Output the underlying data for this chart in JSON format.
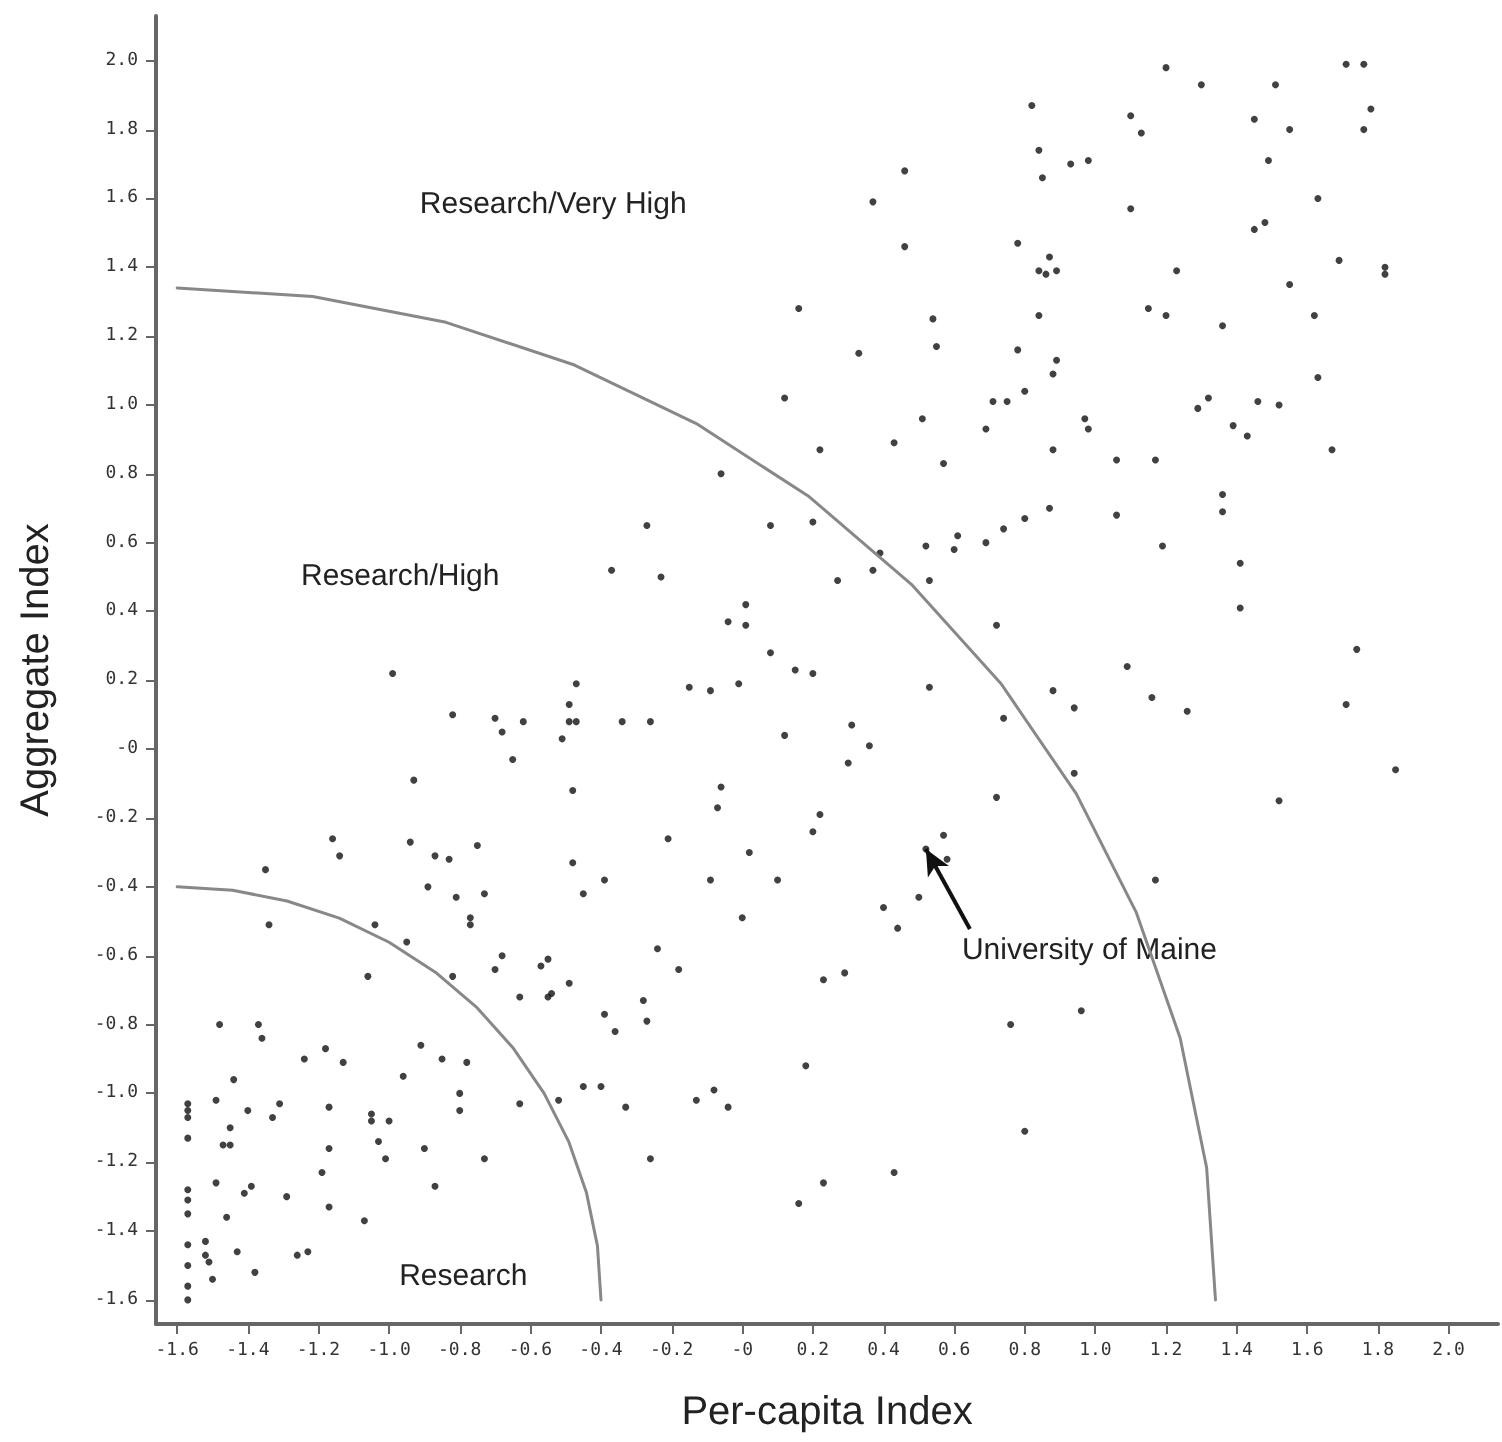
{
  "chart_data": {
    "type": "scatter",
    "xlabel": "Per-capita Index",
    "ylabel": "Aggregate Index",
    "xlim": [
      -1.66,
      2.14
    ],
    "ylim": [
      -1.67,
      2.13
    ],
    "xticks": [
      {
        "value": -1.6,
        "label": "-1.6"
      },
      {
        "value": -1.4,
        "label": "-1.4"
      },
      {
        "value": -1.2,
        "label": "-1.2"
      },
      {
        "value": -1.0,
        "label": "-1.0"
      },
      {
        "value": -0.8,
        "label": "-0.8"
      },
      {
        "value": -0.6,
        "label": "-0.6"
      },
      {
        "value": -0.4,
        "label": "-0.4"
      },
      {
        "value": -0.2,
        "label": "-0.2"
      },
      {
        "value": 0,
        "label": "-0"
      },
      {
        "value": 0.2,
        "label": "0.2"
      },
      {
        "value": 0.4,
        "label": "0.4"
      },
      {
        "value": 0.6,
        "label": "0.6"
      },
      {
        "value": 0.8,
        "label": "0.8"
      },
      {
        "value": 1.0,
        "label": "1.0"
      },
      {
        "value": 1.2,
        "label": "1.2"
      },
      {
        "value": 1.4,
        "label": "1.4"
      },
      {
        "value": 1.6,
        "label": "1.6"
      },
      {
        "value": 1.8,
        "label": "1.8"
      },
      {
        "value": 2.0,
        "label": "2.0"
      }
    ],
    "yticks": [
      {
        "value": -1.6,
        "label": "-1.6"
      },
      {
        "value": -1.4,
        "label": "-1.4"
      },
      {
        "value": -1.2,
        "label": "-1.2"
      },
      {
        "value": -1.0,
        "label": "-1.0"
      },
      {
        "value": -0.8,
        "label": "-0.8"
      },
      {
        "value": -0.6,
        "label": "-0.6"
      },
      {
        "value": -0.4,
        "label": "-0.4"
      },
      {
        "value": -0.2,
        "label": "-0.2"
      },
      {
        "value": 0,
        "label": "-0"
      },
      {
        "value": 0.2,
        "label": "0.2"
      },
      {
        "value": 0.4,
        "label": "0.4"
      },
      {
        "value": 0.6,
        "label": "0.6"
      },
      {
        "value": 0.8,
        "label": "0.8"
      },
      {
        "value": 1.0,
        "label": "1.0"
      },
      {
        "value": 1.2,
        "label": "1.2"
      },
      {
        "value": 1.4,
        "label": "1.4"
      },
      {
        "value": 1.6,
        "label": "1.6"
      },
      {
        "value": 1.8,
        "label": "1.8"
      },
      {
        "value": 2.0,
        "label": "2.0"
      }
    ],
    "marker": "circle",
    "annotations": [
      "Research/Very High",
      "Research/High",
      "Research",
      {
        "text": "University of Maine",
        "x": 0.52,
        "y": -0.29
      }
    ],
    "series": [
      {
        "type": "scatter",
        "color": "#111111",
        "x": [
          -0.06,
          0.08,
          -0.27,
          -0.37,
          -0.23,
          0.01,
          -0.04,
          0.01,
          0.08,
          -0.99,
          1.2,
          1.3,
          1.51,
          1.71,
          1.76,
          1.78,
          1.76,
          1.45,
          1.55,
          1.49,
          1.63,
          1.45,
          1.48,
          1.69,
          1.82,
          1.82,
          1.55,
          1.62,
          1.63,
          1.67,
          1.74,
          1.41,
          1.41,
          1.36,
          1.36,
          1.19,
          1.06,
          1.09,
          0.82,
          0.84,
          0.85,
          0.93,
          0.98,
          1.1,
          1.13,
          1.1,
          0.46,
          0.37,
          0.46,
          0.78,
          0.87,
          0.84,
          0.86,
          0.89,
          1.23,
          1.15,
          1.2,
          1.36,
          0.84,
          0.16,
          0.54,
          0.55,
          0.33,
          0.78,
          0.89,
          0.88,
          0.8,
          0.71,
          0.75,
          0.69,
          0.51,
          0.12,
          0.22,
          0.43,
          0.57,
          0.97,
          0.98,
          0.88,
          1.06,
          1.17,
          1.29,
          1.32,
          1.46,
          1.52,
          1.39,
          1.43,
          0.87,
          0.8,
          0.74,
          0.69,
          0.61,
          0.6,
          0.52,
          0.53,
          0.39,
          0.37,
          0.27,
          0.2,
          0.72,
          0.15,
          0.2,
          0.53,
          0.88,
          0.94,
          1.16,
          1.26,
          1.71,
          1.85,
          1.52,
          1.17,
          0.74,
          0.94,
          0.72,
          0.12,
          0.31,
          0.36,
          0.3,
          0.22,
          0.2,
          0.1,
          0.52,
          0.57,
          0.58,
          0.5,
          0.4,
          0.44,
          0.23,
          0.29,
          0.96,
          0.76,
          0.18,
          0.8,
          0.43,
          0.23,
          0.16,
          -0.47,
          -0.15,
          -0.09,
          -0.01,
          -0.82,
          -0.7,
          -0.68,
          -0.62,
          -0.49,
          -0.49,
          -0.47,
          -0.51,
          -0.34,
          -0.26,
          -0.65,
          -0.93,
          -0.48,
          -0.06,
          -0.07,
          -0.21,
          0.02,
          -1.16,
          -1.14,
          -0.94,
          -0.87,
          -0.83,
          -0.75,
          -0.48,
          -0.09,
          -0.39,
          -0.45,
          0.0,
          -1.35,
          -1.34,
          -0.89,
          -0.81,
          -0.77,
          -0.77,
          -0.73,
          -1.04,
          -0.95,
          -1.06,
          -0.82,
          -0.7,
          -0.68,
          -0.57,
          -0.55,
          -0.49,
          -0.55,
          -0.54,
          -0.63,
          -0.24,
          -0.18,
          -0.28,
          -0.27,
          -0.39,
          -0.36,
          -1.48,
          -1.37,
          -1.36,
          -1.24,
          -1.18,
          -1.13,
          -1.44,
          -0.91,
          -0.85,
          -0.78,
          -0.96,
          -0.8,
          -0.8,
          -0.63,
          -0.52,
          -0.45,
          -0.4,
          -0.33,
          -0.13,
          -0.08,
          -0.04,
          -0.26,
          -1.57,
          -1.57,
          -1.57,
          -1.57,
          -1.49,
          -1.4,
          -1.33,
          -1.31,
          -1.45,
          -1.47,
          -1.45,
          -1.49,
          -1.46,
          -1.41,
          -1.39,
          -1.29,
          -1.17,
          -1.17,
          -1.19,
          -1.17,
          -1.05,
          -1.05,
          -1.0,
          -1.03,
          -1.01,
          -0.9,
          -0.73,
          -0.87,
          -1.07,
          -1.57,
          -1.57,
          -1.57,
          -1.57,
          -1.57,
          -1.57,
          -1.57,
          -1.52,
          -1.52,
          -1.51,
          -1.5,
          -1.43,
          -1.38,
          -1.26,
          -1.23
        ],
        "values": [
          0.8,
          0.65,
          0.65,
          0.52,
          0.5,
          0.42,
          0.37,
          0.36,
          0.28,
          0.22,
          1.98,
          1.93,
          1.93,
          1.99,
          1.99,
          1.86,
          1.8,
          1.83,
          1.8,
          1.71,
          1.6,
          1.51,
          1.53,
          1.42,
          1.4,
          1.38,
          1.35,
          1.26,
          1.08,
          0.87,
          0.29,
          0.54,
          0.41,
          0.74,
          0.69,
          0.59,
          0.68,
          0.24,
          1.87,
          1.74,
          1.66,
          1.7,
          1.71,
          1.84,
          1.79,
          1.57,
          1.68,
          1.59,
          1.46,
          1.47,
          1.43,
          1.39,
          1.38,
          1.39,
          1.39,
          1.28,
          1.26,
          1.23,
          1.26,
          1.28,
          1.25,
          1.17,
          1.15,
          1.16,
          1.13,
          1.09,
          1.04,
          1.01,
          1.01,
          0.93,
          0.96,
          1.02,
          0.87,
          0.89,
          0.83,
          0.96,
          0.93,
          0.87,
          0.84,
          0.84,
          0.99,
          1.02,
          1.01,
          1.0,
          0.94,
          0.91,
          0.7,
          0.67,
          0.64,
          0.6,
          0.62,
          0.58,
          0.59,
          0.49,
          0.57,
          0.52,
          0.49,
          0.66,
          0.36,
          0.23,
          0.22,
          0.18,
          0.17,
          0.12,
          0.15,
          0.11,
          0.13,
          -0.06,
          -0.15,
          -0.38,
          0.09,
          -0.07,
          -0.14,
          0.04,
          0.07,
          0.01,
          -0.04,
          -0.19,
          -0.24,
          -0.38,
          -0.29,
          -0.25,
          -0.32,
          -0.43,
          -0.46,
          -0.52,
          -0.67,
          -0.65,
          -0.76,
          -0.8,
          -0.92,
          -1.11,
          -1.23,
          -1.26,
          -1.32,
          0.19,
          0.18,
          0.17,
          0.19,
          0.1,
          0.09,
          0.05,
          0.08,
          0.13,
          0.08,
          0.08,
          0.03,
          0.08,
          0.08,
          -0.03,
          -0.09,
          -0.12,
          -0.11,
          -0.17,
          -0.26,
          -0.3,
          -0.26,
          -0.31,
          -0.27,
          -0.31,
          -0.32,
          -0.28,
          -0.33,
          -0.38,
          -0.38,
          -0.42,
          -0.49,
          -0.35,
          -0.51,
          -0.4,
          -0.43,
          -0.49,
          -0.51,
          -0.42,
          -0.51,
          -0.56,
          -0.66,
          -0.66,
          -0.64,
          -0.6,
          -0.63,
          -0.61,
          -0.68,
          -0.72,
          -0.71,
          -0.72,
          -0.58,
          -0.64,
          -0.73,
          -0.79,
          -0.77,
          -0.82,
          -0.8,
          -0.8,
          -0.84,
          -0.9,
          -0.87,
          -0.91,
          -0.96,
          -0.86,
          -0.9,
          -0.91,
          -0.95,
          -1.0,
          -1.05,
          -1.03,
          -1.02,
          -0.98,
          -0.98,
          -1.04,
          -1.02,
          -0.99,
          -1.04,
          -1.19,
          -1.03,
          -1.05,
          -1.07,
          -1.13,
          -1.02,
          -1.05,
          -1.07,
          -1.03,
          -1.1,
          -1.15,
          -1.15,
          -1.26,
          -1.36,
          -1.29,
          -1.27,
          -1.3,
          -1.04,
          -1.16,
          -1.23,
          -1.33,
          -1.06,
          -1.08,
          -1.08,
          -1.14,
          -1.19,
          -1.16,
          -1.19,
          -1.27,
          -1.37,
          -1.28,
          -1.31,
          -1.35,
          -1.44,
          -1.5,
          -1.56,
          -1.6,
          -1.43,
          -1.47,
          -1.49,
          -1.54,
          -1.46,
          -1.52,
          -1.47,
          -1.46
        ]
      },
      {
        "type": "line",
        "color": "#888888",
        "marker": "none",
        "x": [
          -1.6,
          -1.443,
          -1.289,
          -1.141,
          -1.0,
          -0.869,
          -0.751,
          -0.648,
          -0.561,
          -0.491,
          -0.441,
          -0.41,
          -0.4
        ],
        "values": [
          -0.4,
          -0.41,
          -0.441,
          -0.491,
          -0.561,
          -0.648,
          -0.751,
          -0.869,
          -1.0,
          -1.141,
          -1.289,
          -1.443,
          -1.6
        ]
      },
      {
        "type": "line",
        "color": "#888888",
        "marker": "none",
        "x": [
          -1.6,
          -1.216,
          -0.839,
          -0.475,
          -0.13,
          0.19,
          0.479,
          0.733,
          0.946,
          1.116,
          1.24,
          1.315,
          1.34
        ],
        "values": [
          1.34,
          1.315,
          1.24,
          1.116,
          0.946,
          0.733,
          0.479,
          0.19,
          -0.13,
          -0.475,
          -0.839,
          -1.216,
          -1.6
        ]
      }
    ]
  }
}
